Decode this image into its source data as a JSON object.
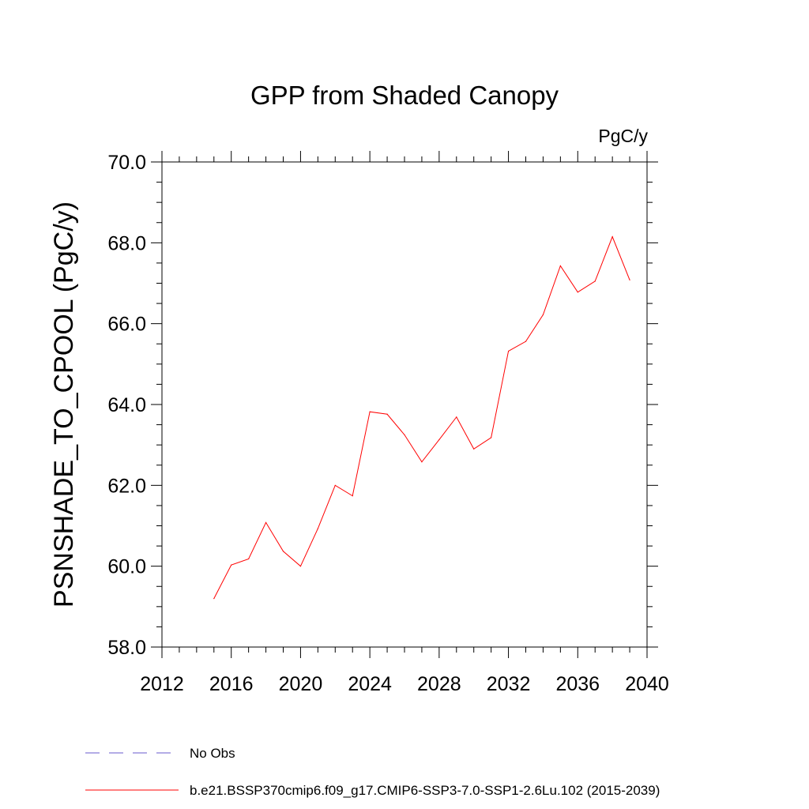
{
  "chart_data": {
    "type": "line",
    "title": "GPP from Shaded Canopy",
    "units": "PgC/y",
    "ylabel": "PSNSHADE_TO_CPOOL  (PgC/y)",
    "xlabel": "",
    "xlim": [
      2012,
      2040
    ],
    "ylim": [
      58.0,
      70.0
    ],
    "x_ticks": [
      2012,
      2016,
      2020,
      2024,
      2028,
      2032,
      2036,
      2040
    ],
    "x_tick_labels": [
      "2012",
      "2016",
      "2020",
      "2024",
      "2028",
      "2032",
      "2036",
      "2040"
    ],
    "y_ticks": [
      58.0,
      60.0,
      62.0,
      64.0,
      66.0,
      68.0,
      70.0
    ],
    "y_tick_labels": [
      "58.0",
      "60.0",
      "62.0",
      "64.0",
      "66.0",
      "68.0",
      "70.0"
    ],
    "grid": false,
    "legend_placement": "bottom",
    "series": [
      {
        "name": "b.e21.BSSP370cmip6.f09_g17.CMIP6-SSP3-7.0-SSP1-2.6Lu.102 (2015-2039)",
        "color": "#ff0000",
        "style": "solid",
        "x": [
          2015,
          2016,
          2017,
          2018,
          2019,
          2020,
          2021,
          2022,
          2023,
          2024,
          2025,
          2026,
          2027,
          2028,
          2029,
          2030,
          2031,
          2032,
          2033,
          2034,
          2035,
          2036,
          2037,
          2038,
          2039
        ],
        "values": [
          59.2,
          60.03,
          60.18,
          61.08,
          60.37,
          60.0,
          60.93,
          62.0,
          61.74,
          63.82,
          63.76,
          63.25,
          62.58,
          63.13,
          63.69,
          62.9,
          63.18,
          65.32,
          65.56,
          66.22,
          67.43,
          66.78,
          67.05,
          68.15,
          67.08
        ]
      }
    ],
    "legend": [
      {
        "label": "No Obs",
        "color": "#6a5acd",
        "style": "dashed"
      },
      {
        "label": "b.e21.BSSP370cmip6.f09_g17.CMIP6-SSP3-7.0-SSP1-2.6Lu.102 (2015-2039)",
        "color": "#ff0000",
        "style": "solid"
      }
    ]
  }
}
